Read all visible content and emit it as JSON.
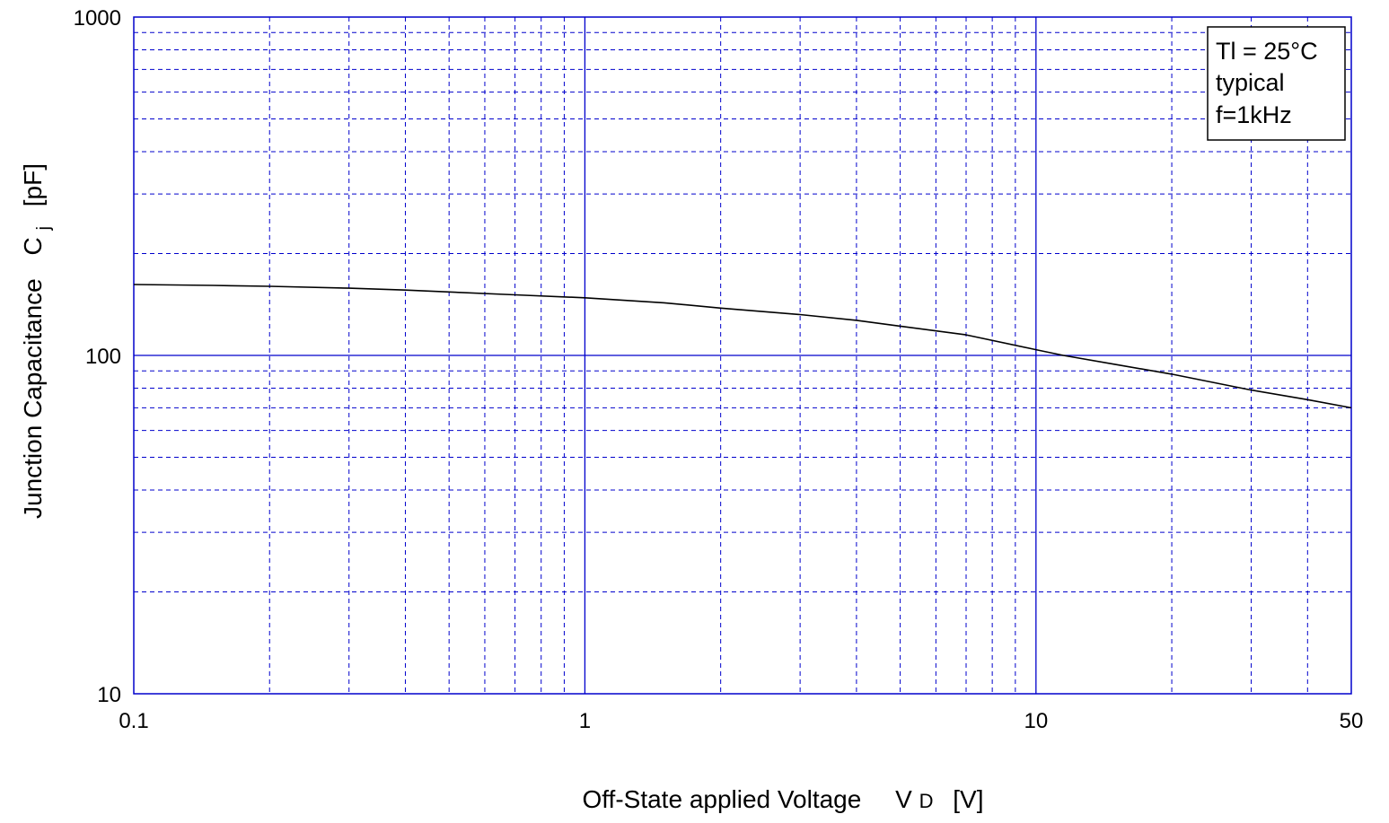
{
  "chart_data": {
    "type": "line",
    "x_scale": "log",
    "y_scale": "log",
    "xlim": [
      0.1,
      50
    ],
    "ylim": [
      10,
      1000
    ],
    "x_ticks": [
      {
        "value": 0.1,
        "label": "0.1"
      },
      {
        "value": 1,
        "label": "1"
      },
      {
        "value": 10,
        "label": "10"
      },
      {
        "value": 50,
        "label": "50"
      }
    ],
    "y_ticks": [
      {
        "value": 10,
        "label": "10"
      },
      {
        "value": 100,
        "label": "100"
      },
      {
        "value": 1000,
        "label": "1000"
      }
    ],
    "xlabel": {
      "main": "Off-State  applied  Voltage",
      "symbol": "V",
      "subscript": "D",
      "unit": "[V]"
    },
    "ylabel": {
      "main": "Junction Capacitance",
      "symbol": "C",
      "subscript": "j",
      "unit": "[pF]"
    },
    "grid": true,
    "grid_style": "dashed",
    "line_color": "#000000",
    "grid_color": "#0000cc",
    "annotation": [
      "Tl = 25°C",
      "typical",
      "f=1kHz"
    ],
    "annotation_position": "top-right",
    "series": [
      {
        "x": [
          0.1,
          0.15,
          0.2,
          0.3,
          0.4,
          0.5,
          0.7,
          1,
          1.5,
          2,
          3,
          4,
          5,
          7,
          10,
          11.5,
          15,
          20,
          30,
          40,
          50
        ],
        "y": [
          162,
          161,
          160,
          158,
          156,
          154,
          151,
          148,
          143,
          138,
          132,
          127,
          122,
          115,
          104,
          100,
          94,
          88,
          79,
          74,
          70
        ]
      }
    ]
  }
}
